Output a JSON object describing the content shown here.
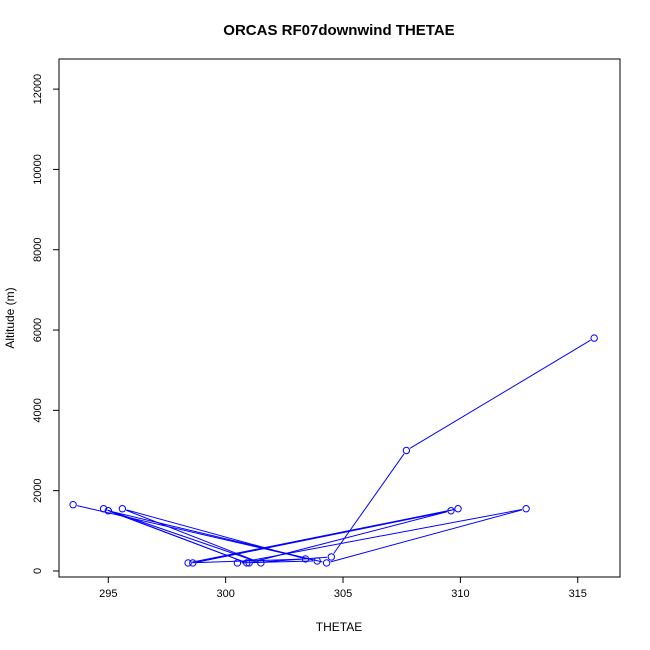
{
  "chart_data": {
    "type": "line",
    "title": "ORCAS RF07downwind THETAE",
    "xlabel": "THETAE",
    "ylabel": "Altitude (m)",
    "xlim": [
      292.9,
      316.8
    ],
    "ylim": [
      -150,
      12750
    ],
    "x_ticks": [
      295,
      300,
      305,
      310,
      315
    ],
    "y_ticks": [
      0,
      2000,
      4000,
      6000,
      8000,
      10000,
      12000
    ],
    "grid": false,
    "legend": "none",
    "marker": "open-circle",
    "line_color": "#0000ff",
    "series": [
      {
        "points": [
          {
            "x": 293.5,
            "y": 1650
          },
          {
            "x": 303.9,
            "y": 250
          },
          {
            "x": 300.5,
            "y": 200
          },
          {
            "x": 312.8,
            "y": 1550
          },
          {
            "x": 304.3,
            "y": 200
          },
          {
            "x": 295.0,
            "y": 1500
          },
          {
            "x": 300.9,
            "y": 200
          },
          {
            "x": 294.8,
            "y": 1550
          },
          {
            "x": 301.5,
            "y": 200
          },
          {
            "x": 295.6,
            "y": 1550
          },
          {
            "x": 303.4,
            "y": 300
          },
          {
            "x": 298.4,
            "y": 200
          },
          {
            "x": 309.9,
            "y": 1550
          },
          {
            "x": 298.6,
            "y": 200
          },
          {
            "x": 309.6,
            "y": 1500
          },
          {
            "x": 301.0,
            "y": 200
          },
          {
            "x": 304.5,
            "y": 350
          },
          {
            "x": 307.7,
            "y": 3000
          },
          {
            "x": 315.7,
            "y": 5800
          }
        ]
      }
    ]
  }
}
